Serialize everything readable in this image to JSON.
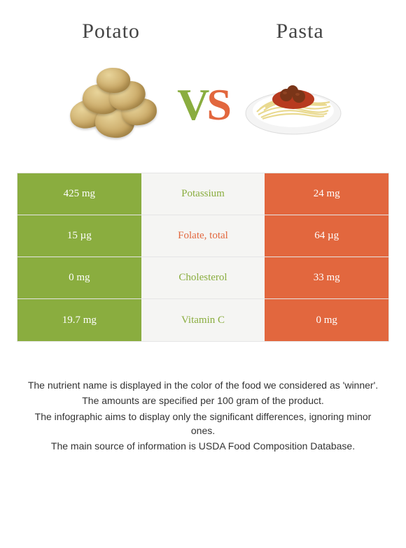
{
  "header": {
    "left_title": "Potato",
    "right_title": "Pasta"
  },
  "vs": {
    "v": "V",
    "s": "S"
  },
  "colors": {
    "left": "#8aad3f",
    "right": "#e2673e",
    "mid_bg": "#f5f5f3",
    "border": "#e5e5e5",
    "text_white": "#ffffff"
  },
  "rows": [
    {
      "left": "425 mg",
      "label": "Potassium",
      "right": "24 mg",
      "winner": "left"
    },
    {
      "left": "15 µg",
      "label": "Folate, total",
      "right": "64 µg",
      "winner": "right"
    },
    {
      "left": "0 mg",
      "label": "Cholesterol",
      "right": "33 mg",
      "winner": "left"
    },
    {
      "left": "19.7 mg",
      "label": "Vitamin C",
      "right": "0 mg",
      "winner": "left"
    }
  ],
  "footer": {
    "line1": "The nutrient name is displayed in the color of the food we considered as 'winner'.",
    "line2": "The amounts are specified per 100 gram of the product.",
    "line3": "The infographic aims to display only the significant differences, ignoring minor ones.",
    "line4": "The main source of information is USDA Food Composition Database."
  }
}
